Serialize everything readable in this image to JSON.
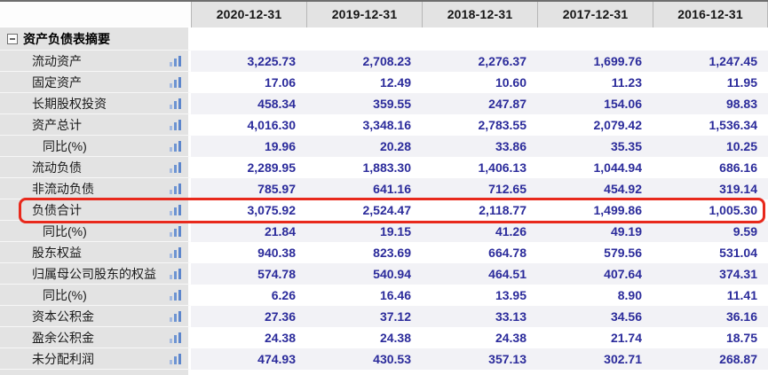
{
  "table": {
    "columns": [
      "2020-12-31",
      "2019-12-31",
      "2018-12-31",
      "2017-12-31",
      "2016-12-31"
    ],
    "section": {
      "label": "资产负债表摘要",
      "collapse_icon": "minus-box-icon"
    },
    "rows": [
      {
        "label": "流动资产",
        "indent": "main",
        "highlight": false,
        "values": [
          "3,225.73",
          "2,708.23",
          "2,276.37",
          "1,699.76",
          "1,247.45"
        ]
      },
      {
        "label": "固定资产",
        "indent": "main",
        "highlight": false,
        "values": [
          "17.06",
          "12.49",
          "10.60",
          "11.23",
          "11.95"
        ]
      },
      {
        "label": "长期股权投资",
        "indent": "main",
        "highlight": false,
        "values": [
          "458.34",
          "359.55",
          "247.87",
          "154.06",
          "98.83"
        ]
      },
      {
        "label": "资产总计",
        "indent": "main",
        "highlight": false,
        "values": [
          "4,016.30",
          "3,348.16",
          "2,783.55",
          "2,079.42",
          "1,536.34"
        ]
      },
      {
        "label": "同比(%)",
        "indent": "sub",
        "highlight": false,
        "values": [
          "19.96",
          "20.28",
          "33.86",
          "35.35",
          "10.25"
        ]
      },
      {
        "label": "流动负债",
        "indent": "main",
        "highlight": false,
        "values": [
          "2,289.95",
          "1,883.30",
          "1,406.13",
          "1,044.94",
          "686.16"
        ]
      },
      {
        "label": "非流动负债",
        "indent": "main",
        "highlight": false,
        "values": [
          "785.97",
          "641.16",
          "712.65",
          "454.92",
          "319.14"
        ]
      },
      {
        "label": "负债合计",
        "indent": "main",
        "highlight": true,
        "values": [
          "3,075.92",
          "2,524.47",
          "2,118.77",
          "1,499.86",
          "1,005.30"
        ]
      },
      {
        "label": "同比(%)",
        "indent": "sub",
        "highlight": false,
        "values": [
          "21.84",
          "19.15",
          "41.26",
          "49.19",
          "9.59"
        ]
      },
      {
        "label": "股东权益",
        "indent": "main",
        "highlight": false,
        "values": [
          "940.38",
          "823.69",
          "664.78",
          "579.56",
          "531.04"
        ]
      },
      {
        "label": "归属母公司股东的权益",
        "indent": "main",
        "highlight": false,
        "values": [
          "574.78",
          "540.94",
          "464.51",
          "407.64",
          "374.31"
        ]
      },
      {
        "label": "同比(%)",
        "indent": "sub",
        "highlight": false,
        "values": [
          "6.26",
          "16.46",
          "13.95",
          "8.90",
          "11.41"
        ]
      },
      {
        "label": "资本公积金",
        "indent": "main",
        "highlight": false,
        "values": [
          "27.36",
          "37.12",
          "33.13",
          "34.56",
          "36.16"
        ]
      },
      {
        "label": "盈余公积金",
        "indent": "main",
        "highlight": false,
        "values": [
          "24.38",
          "24.38",
          "24.38",
          "21.74",
          "18.75"
        ]
      },
      {
        "label": "未分配利润",
        "indent": "main",
        "highlight": false,
        "values": [
          "474.93",
          "430.53",
          "357.13",
          "302.71",
          "268.87"
        ]
      }
    ],
    "row_icon": "bar-chart-icon",
    "colors": {
      "number_text": "#2b2b9b",
      "highlight_border": "#e8291c",
      "header_bg": "#e3e3e3",
      "stripe_bg": "#f2f2f6",
      "icon_blue": "#5d86cc"
    }
  }
}
